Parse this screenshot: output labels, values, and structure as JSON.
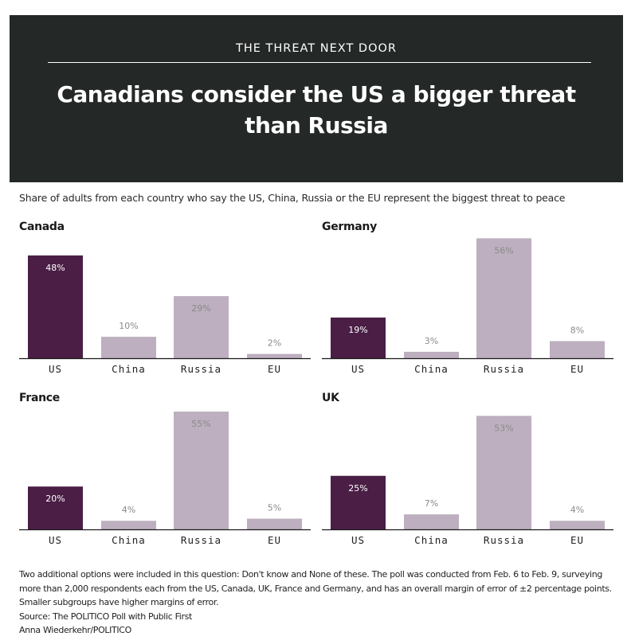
{
  "header": {
    "kicker": "THE THREAT NEXT DOOR",
    "title": "Canadians consider the US a bigger threat than Russia"
  },
  "subtitle": "Share of adults from each country who say the US, China, Russia or the EU represent the biggest threat to peace",
  "colors": {
    "header_bg": "#242826",
    "highlight_bar": "#4a1e45",
    "other_bar": "#bdafbf",
    "highlight_label": "#ffffff",
    "other_label": "#8a8a8a"
  },
  "chart_data": [
    {
      "type": "bar",
      "title": "Canada",
      "categories": [
        "US",
        "China",
        "Russia",
        "EU"
      ],
      "values": [
        48,
        10,
        29,
        2
      ],
      "value_labels": [
        "48%",
        "10%",
        "29%",
        "2%"
      ],
      "highlight": "US",
      "xlabel": "",
      "ylabel": "",
      "ylim": [
        0,
        56
      ],
      "grid": false
    },
    {
      "type": "bar",
      "title": "Germany",
      "categories": [
        "US",
        "China",
        "Russia",
        "EU"
      ],
      "values": [
        19,
        3,
        56,
        8
      ],
      "value_labels": [
        "19%",
        "3%",
        "56%",
        "8%"
      ],
      "highlight": "US",
      "xlabel": "",
      "ylabel": "",
      "ylim": [
        0,
        56
      ],
      "grid": false
    },
    {
      "type": "bar",
      "title": "France",
      "categories": [
        "US",
        "China",
        "Russia",
        "EU"
      ],
      "values": [
        20,
        4,
        55,
        5
      ],
      "value_labels": [
        "20%",
        "4%",
        "55%",
        "5%"
      ],
      "highlight": "US",
      "xlabel": "",
      "ylabel": "",
      "ylim": [
        0,
        56
      ],
      "grid": false
    },
    {
      "type": "bar",
      "title": "UK",
      "categories": [
        "US",
        "China",
        "Russia",
        "EU"
      ],
      "values": [
        25,
        7,
        53,
        4
      ],
      "value_labels": [
        "25%",
        "7%",
        "53%",
        "4%"
      ],
      "highlight": "US",
      "xlabel": "",
      "ylabel": "",
      "ylim": [
        0,
        56
      ],
      "grid": false
    }
  ],
  "notes": {
    "methodology": "Two additional options were included in this question: Don't know and None of these. The poll was conducted from Feb. 6 to Feb. 9, surveying more than 2,000 respondents each from the US, Canada, UK, France and Germany, and has an overall margin of error of ±2 percentage points. Smaller subgroups have higher margins of error.",
    "source": "Source: The POLITICO Poll with Public First",
    "credit": "Anna Wiederkehr/POLITICO"
  }
}
